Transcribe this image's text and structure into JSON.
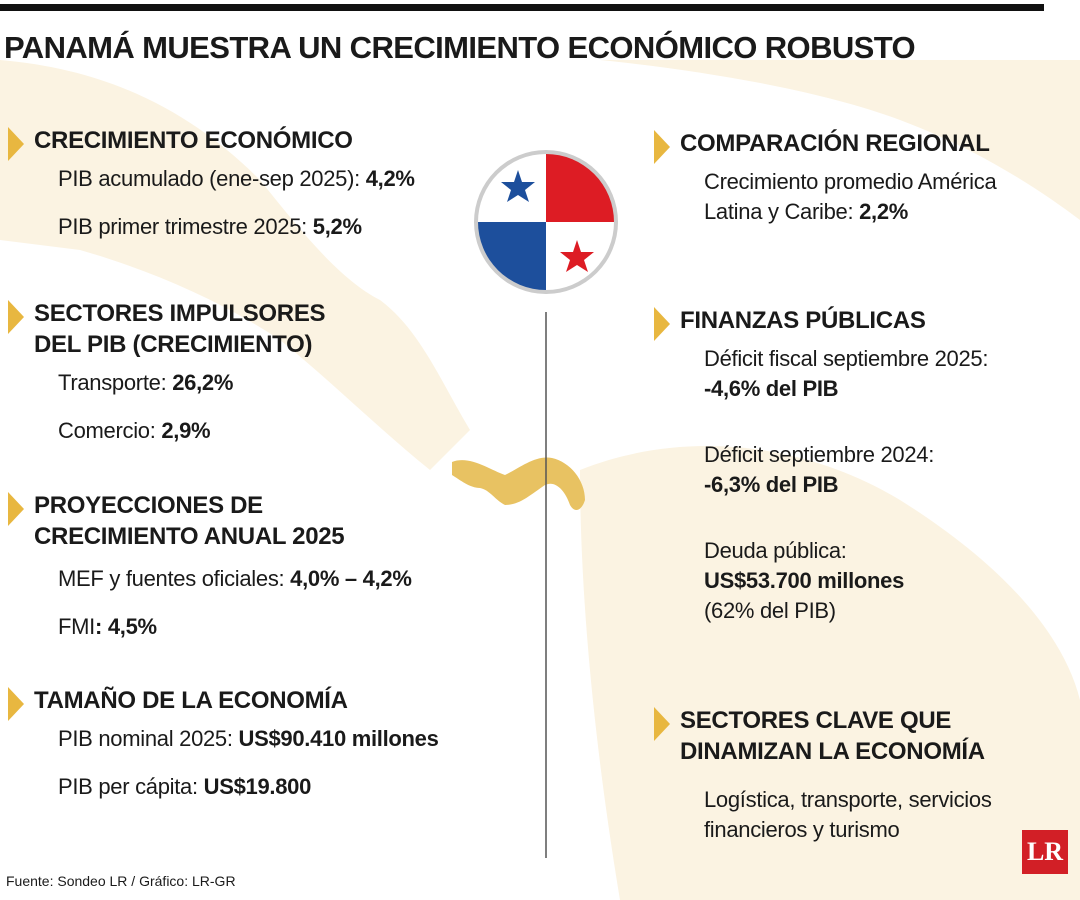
{
  "title": "PANAMÁ MUESTRA UN CRECIMIENTO ECONÓMICO ROBUSTO",
  "left": [
    {
      "heading": [
        "CRECIMIENTO ECONÓMICO"
      ],
      "items": [
        {
          "label": "PIB acumulado (ene-sep 2025): ",
          "value": "4,2%"
        },
        {
          "label": "PIB primer trimestre 2025: ",
          "value": "5,2%"
        }
      ]
    },
    {
      "heading": [
        "SECTORES IMPULSORES",
        "DEL PIB (CRECIMIENTO)"
      ],
      "items": [
        {
          "label": "Transporte: ",
          "value": "26,2%"
        },
        {
          "label": "Comercio: ",
          "value": "2,9%"
        }
      ]
    },
    {
      "heading": [
        "PROYECCIONES DE",
        "CRECIMIENTO ANUAL 2025"
      ],
      "items": [
        {
          "label": "MEF y fuentes oficiales: ",
          "value": "4,0% – 4,2%"
        },
        {
          "label": "FMI",
          "value": ": 4,5%"
        }
      ]
    },
    {
      "heading": [
        "TAMAÑO DE LA ECONOMÍA"
      ],
      "items": [
        {
          "label": "PIB nominal 2025: ",
          "value": "US$90.410 millones"
        },
        {
          "label": "PIB per cápita: ",
          "value": "US$19.800"
        }
      ]
    }
  ],
  "right": [
    {
      "heading": [
        "COMPARACIÓN REGIONAL"
      ],
      "items": [
        {
          "label": "Crecimiento promedio América Latina y Caribe: ",
          "value": "2,2%"
        }
      ]
    },
    {
      "heading": [
        "FINANZAS PÚBLICAS"
      ],
      "items": [
        {
          "label": "Déficit fiscal septiembre 2025:",
          "value": "-4,6% del PIB"
        },
        {
          "label": "Déficit septiembre 2024:",
          "value": "-6,3% del PIB"
        },
        {
          "label": "Deuda pública:",
          "value": "US$53.700 millones",
          "note": "(62% del PIB)"
        }
      ]
    },
    {
      "heading": [
        "SECTORES CLAVE QUE",
        "DINAMIZAN LA ECONOMÍA"
      ],
      "items": [
        {
          "label": "Logística, transporte, servicios financieros y turismo"
        }
      ]
    }
  ],
  "source": "Fuente: Sondeo LR / Gráfico: LR-GR",
  "logo": "LR"
}
